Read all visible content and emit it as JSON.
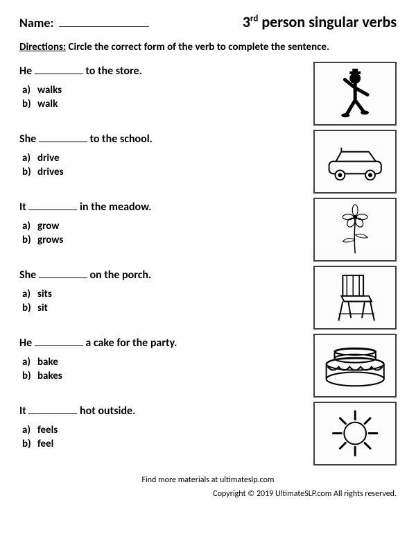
{
  "header": {
    "name_label": "Name:",
    "title_pre": "3",
    "title_sup": "rd",
    "title_rest": " person singular verbs"
  },
  "directions": {
    "label": "Directions:",
    "text": " Circle the correct form of the verb to complete the sentence."
  },
  "questions": [
    {
      "pre": "He ",
      "post": " to the store.",
      "opts": [
        "walks",
        "walk"
      ],
      "icon": "man"
    },
    {
      "pre": "She ",
      "post": " to the school.",
      "opts": [
        "drive",
        "drives"
      ],
      "icon": "car"
    },
    {
      "pre": "It ",
      "post": " in the meadow.",
      "opts": [
        "grow",
        "grows"
      ],
      "icon": "flower"
    },
    {
      "pre": "She ",
      "post": " on the porch.",
      "opts": [
        "sits",
        "sit"
      ],
      "icon": "chair"
    },
    {
      "pre": "He ",
      "post": " a cake for the party.",
      "opts": [
        "bake",
        "bakes"
      ],
      "icon": "cake"
    },
    {
      "pre": "It ",
      "post": " hot outside.",
      "opts": [
        "feels",
        "feel"
      ],
      "icon": "sun"
    }
  ],
  "letters": [
    "a)",
    "b)"
  ],
  "footer": {
    "line1": "Find more materials at ultimateslp.com",
    "line2": "Copyright © 2019 UltimateSLP.com All rights reserved."
  },
  "colors": {
    "text": "#000000",
    "border": "#404040",
    "background": "#ffffff"
  }
}
